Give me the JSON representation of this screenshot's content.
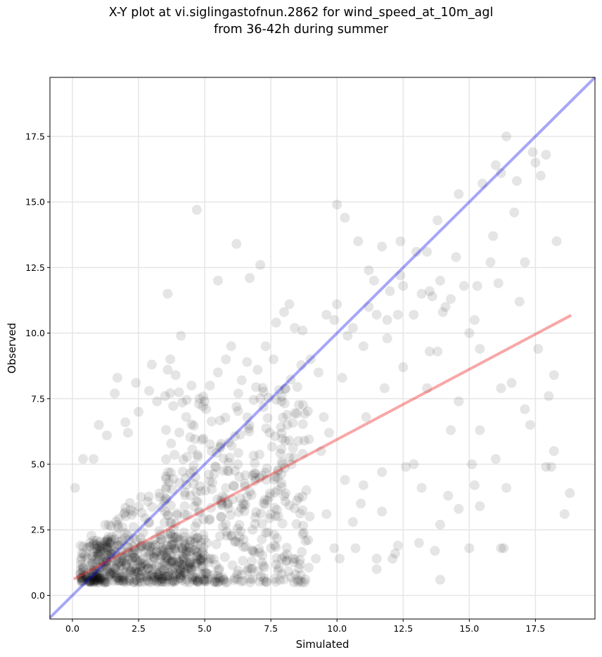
{
  "chart_data": {
    "type": "scatter",
    "title_line1": "X-Y plot at vi.siglingastofnun.2862 for wind_speed_at_10m_agl",
    "title_line2": "from 36-42h during summer",
    "xlabel": "Simulated",
    "ylabel": "Observed",
    "xlim": [
      -0.85,
      19.75
    ],
    "ylim": [
      -0.9,
      19.75
    ],
    "xticks": [
      0.0,
      2.5,
      5.0,
      7.5,
      10.0,
      12.5,
      15.0,
      17.5
    ],
    "yticks": [
      0.0,
      2.5,
      5.0,
      7.5,
      10.0,
      12.5,
      15.0,
      17.5
    ],
    "tick_labels": [
      "0.0",
      "2.5",
      "5.0",
      "7.5",
      "10.0",
      "12.5",
      "15.0",
      "17.5"
    ],
    "grid": true,
    "point_color": "#000000",
    "identity_line": {
      "x": [
        -0.85,
        19.75
      ],
      "y": [
        -0.85,
        19.75
      ],
      "color": "#0000ee"
    },
    "fit_line": {
      "x": [
        0.05,
        18.85
      ],
      "y": [
        0.62,
        10.68
      ],
      "color": "#ee2222"
    },
    "points": [
      [
        0.1,
        4.1
      ],
      [
        0.4,
        5.2
      ],
      [
        0.8,
        5.2
      ],
      [
        1.0,
        6.5
      ],
      [
        1.3,
        6.1
      ],
      [
        1.6,
        7.7
      ],
      [
        1.7,
        8.3
      ],
      [
        2.0,
        6.6
      ],
      [
        2.1,
        6.2
      ],
      [
        2.4,
        8.1
      ],
      [
        2.5,
        7.0
      ],
      [
        2.9,
        7.8
      ],
      [
        3.0,
        8.8
      ],
      [
        3.2,
        7.4
      ],
      [
        3.5,
        7.6
      ],
      [
        3.6,
        8.6
      ],
      [
        3.6,
        11.5
      ],
      [
        3.9,
        8.4
      ],
      [
        3.7,
        9.0
      ],
      [
        4.1,
        9.9
      ],
      [
        4.3,
        6.8
      ],
      [
        4.5,
        8.0
      ],
      [
        4.7,
        14.7
      ],
      [
        4.8,
        7.5
      ],
      [
        5.0,
        7.4
      ],
      [
        5.2,
        8.0
      ],
      [
        5.5,
        12.0
      ],
      [
        5.5,
        8.5
      ],
      [
        5.8,
        9.0
      ],
      [
        6.0,
        9.5
      ],
      [
        6.2,
        13.4
      ],
      [
        6.4,
        8.2
      ],
      [
        6.6,
        8.9
      ],
      [
        6.7,
        12.1
      ],
      [
        7.0,
        8.6
      ],
      [
        7.1,
        12.6
      ],
      [
        7.3,
        9.5
      ],
      [
        7.6,
        9.0
      ],
      [
        7.7,
        10.4
      ],
      [
        8.0,
        10.8
      ],
      [
        8.2,
        11.1
      ],
      [
        8.4,
        10.2
      ],
      [
        8.7,
        10.1
      ],
      [
        9.0,
        9.0
      ],
      [
        9.3,
        8.5
      ],
      [
        9.6,
        10.7
      ],
      [
        9.9,
        10.5
      ],
      [
        10.0,
        11.1
      ],
      [
        10.2,
        8.3
      ],
      [
        10.4,
        9.9
      ],
      [
        10.0,
        14.9
      ],
      [
        10.3,
        14.4
      ],
      [
        10.6,
        10.2
      ],
      [
        10.8,
        13.5
      ],
      [
        11.0,
        9.5
      ],
      [
        11.2,
        12.4
      ],
      [
        11.4,
        12.0
      ],
      [
        11.5,
        10.7
      ],
      [
        11.7,
        13.3
      ],
      [
        11.9,
        10.5
      ],
      [
        12.0,
        11.6
      ],
      [
        12.3,
        10.7
      ],
      [
        12.4,
        13.5
      ],
      [
        12.5,
        11.8
      ],
      [
        12.9,
        10.7
      ],
      [
        13.0,
        13.1
      ],
      [
        13.2,
        11.5
      ],
      [
        13.4,
        13.1
      ],
      [
        13.5,
        11.6
      ],
      [
        13.6,
        11.4
      ],
      [
        13.8,
        14.3
      ],
      [
        13.9,
        12.0
      ],
      [
        14.1,
        11.0
      ],
      [
        14.3,
        11.3
      ],
      [
        14.6,
        15.3
      ],
      [
        14.8,
        11.8
      ],
      [
        15.0,
        10.0
      ],
      [
        15.2,
        10.5
      ],
      [
        15.3,
        11.8
      ],
      [
        15.5,
        15.7
      ],
      [
        15.8,
        12.7
      ],
      [
        15.9,
        13.7
      ],
      [
        16.0,
        16.4
      ],
      [
        16.1,
        11.9
      ],
      [
        16.2,
        16.1
      ],
      [
        16.4,
        17.5
      ],
      [
        16.7,
        14.6
      ],
      [
        16.8,
        15.8
      ],
      [
        17.1,
        12.7
      ],
      [
        17.4,
        16.9
      ],
      [
        17.5,
        16.5
      ],
      [
        17.7,
        16.0
      ],
      [
        17.9,
        16.8
      ],
      [
        17.6,
        9.4
      ],
      [
        17.3,
        6.5
      ],
      [
        18.0,
        7.6
      ],
      [
        18.2,
        8.4
      ],
      [
        18.3,
        13.5
      ],
      [
        18.1,
        4.9
      ],
      [
        18.2,
        5.5
      ],
      [
        18.8,
        3.9
      ],
      [
        18.6,
        3.1
      ],
      [
        17.9,
        4.9
      ],
      [
        16.9,
        11.2
      ],
      [
        16.6,
        8.1
      ],
      [
        16.2,
        7.9
      ],
      [
        15.4,
        9.4
      ],
      [
        15.4,
        6.3
      ],
      [
        15.2,
        4.2
      ],
      [
        15.1,
        5.0
      ],
      [
        15.0,
        1.8
      ],
      [
        16.0,
        5.2
      ],
      [
        16.4,
        4.1
      ],
      [
        16.3,
        1.8
      ],
      [
        15.4,
        3.4
      ],
      [
        14.6,
        7.4
      ],
      [
        14.6,
        3.3
      ],
      [
        14.3,
        6.3
      ],
      [
        14.2,
        3.8
      ],
      [
        13.9,
        2.7
      ],
      [
        13.9,
        0.6
      ],
      [
        13.7,
        1.7
      ],
      [
        13.4,
        7.9
      ],
      [
        13.5,
        9.3
      ],
      [
        13.8,
        9.3
      ],
      [
        13.2,
        4.1
      ],
      [
        13.1,
        2.0
      ],
      [
        12.6,
        4.9
      ],
      [
        12.3,
        1.9
      ],
      [
        12.2,
        1.6
      ],
      [
        12.1,
        1.4
      ],
      [
        11.7,
        4.7
      ],
      [
        11.7,
        3.2
      ],
      [
        11.5,
        1.4
      ],
      [
        11.5,
        1.0
      ],
      [
        11.1,
        6.8
      ],
      [
        11.0,
        4.2
      ],
      [
        10.9,
        3.5
      ],
      [
        10.7,
        1.8
      ],
      [
        10.6,
        2.8
      ],
      [
        10.3,
        4.4
      ],
      [
        10.1,
        1.4
      ],
      [
        9.9,
        1.8
      ],
      [
        9.6,
        3.1
      ],
      [
        9.2,
        1.4
      ],
      [
        9.4,
        5.5
      ],
      [
        9.7,
        6.2
      ],
      [
        9.5,
        6.8
      ],
      [
        12.4,
        12.2
      ],
      [
        12.9,
        5.0
      ],
      [
        14.0,
        10.8
      ],
      [
        14.5,
        12.9
      ],
      [
        16.2,
        1.8
      ],
      [
        17.1,
        7.1
      ],
      [
        11.2,
        11.0
      ],
      [
        11.8,
        7.9
      ],
      [
        11.9,
        9.8
      ],
      [
        12.5,
        8.7
      ]
    ]
  }
}
